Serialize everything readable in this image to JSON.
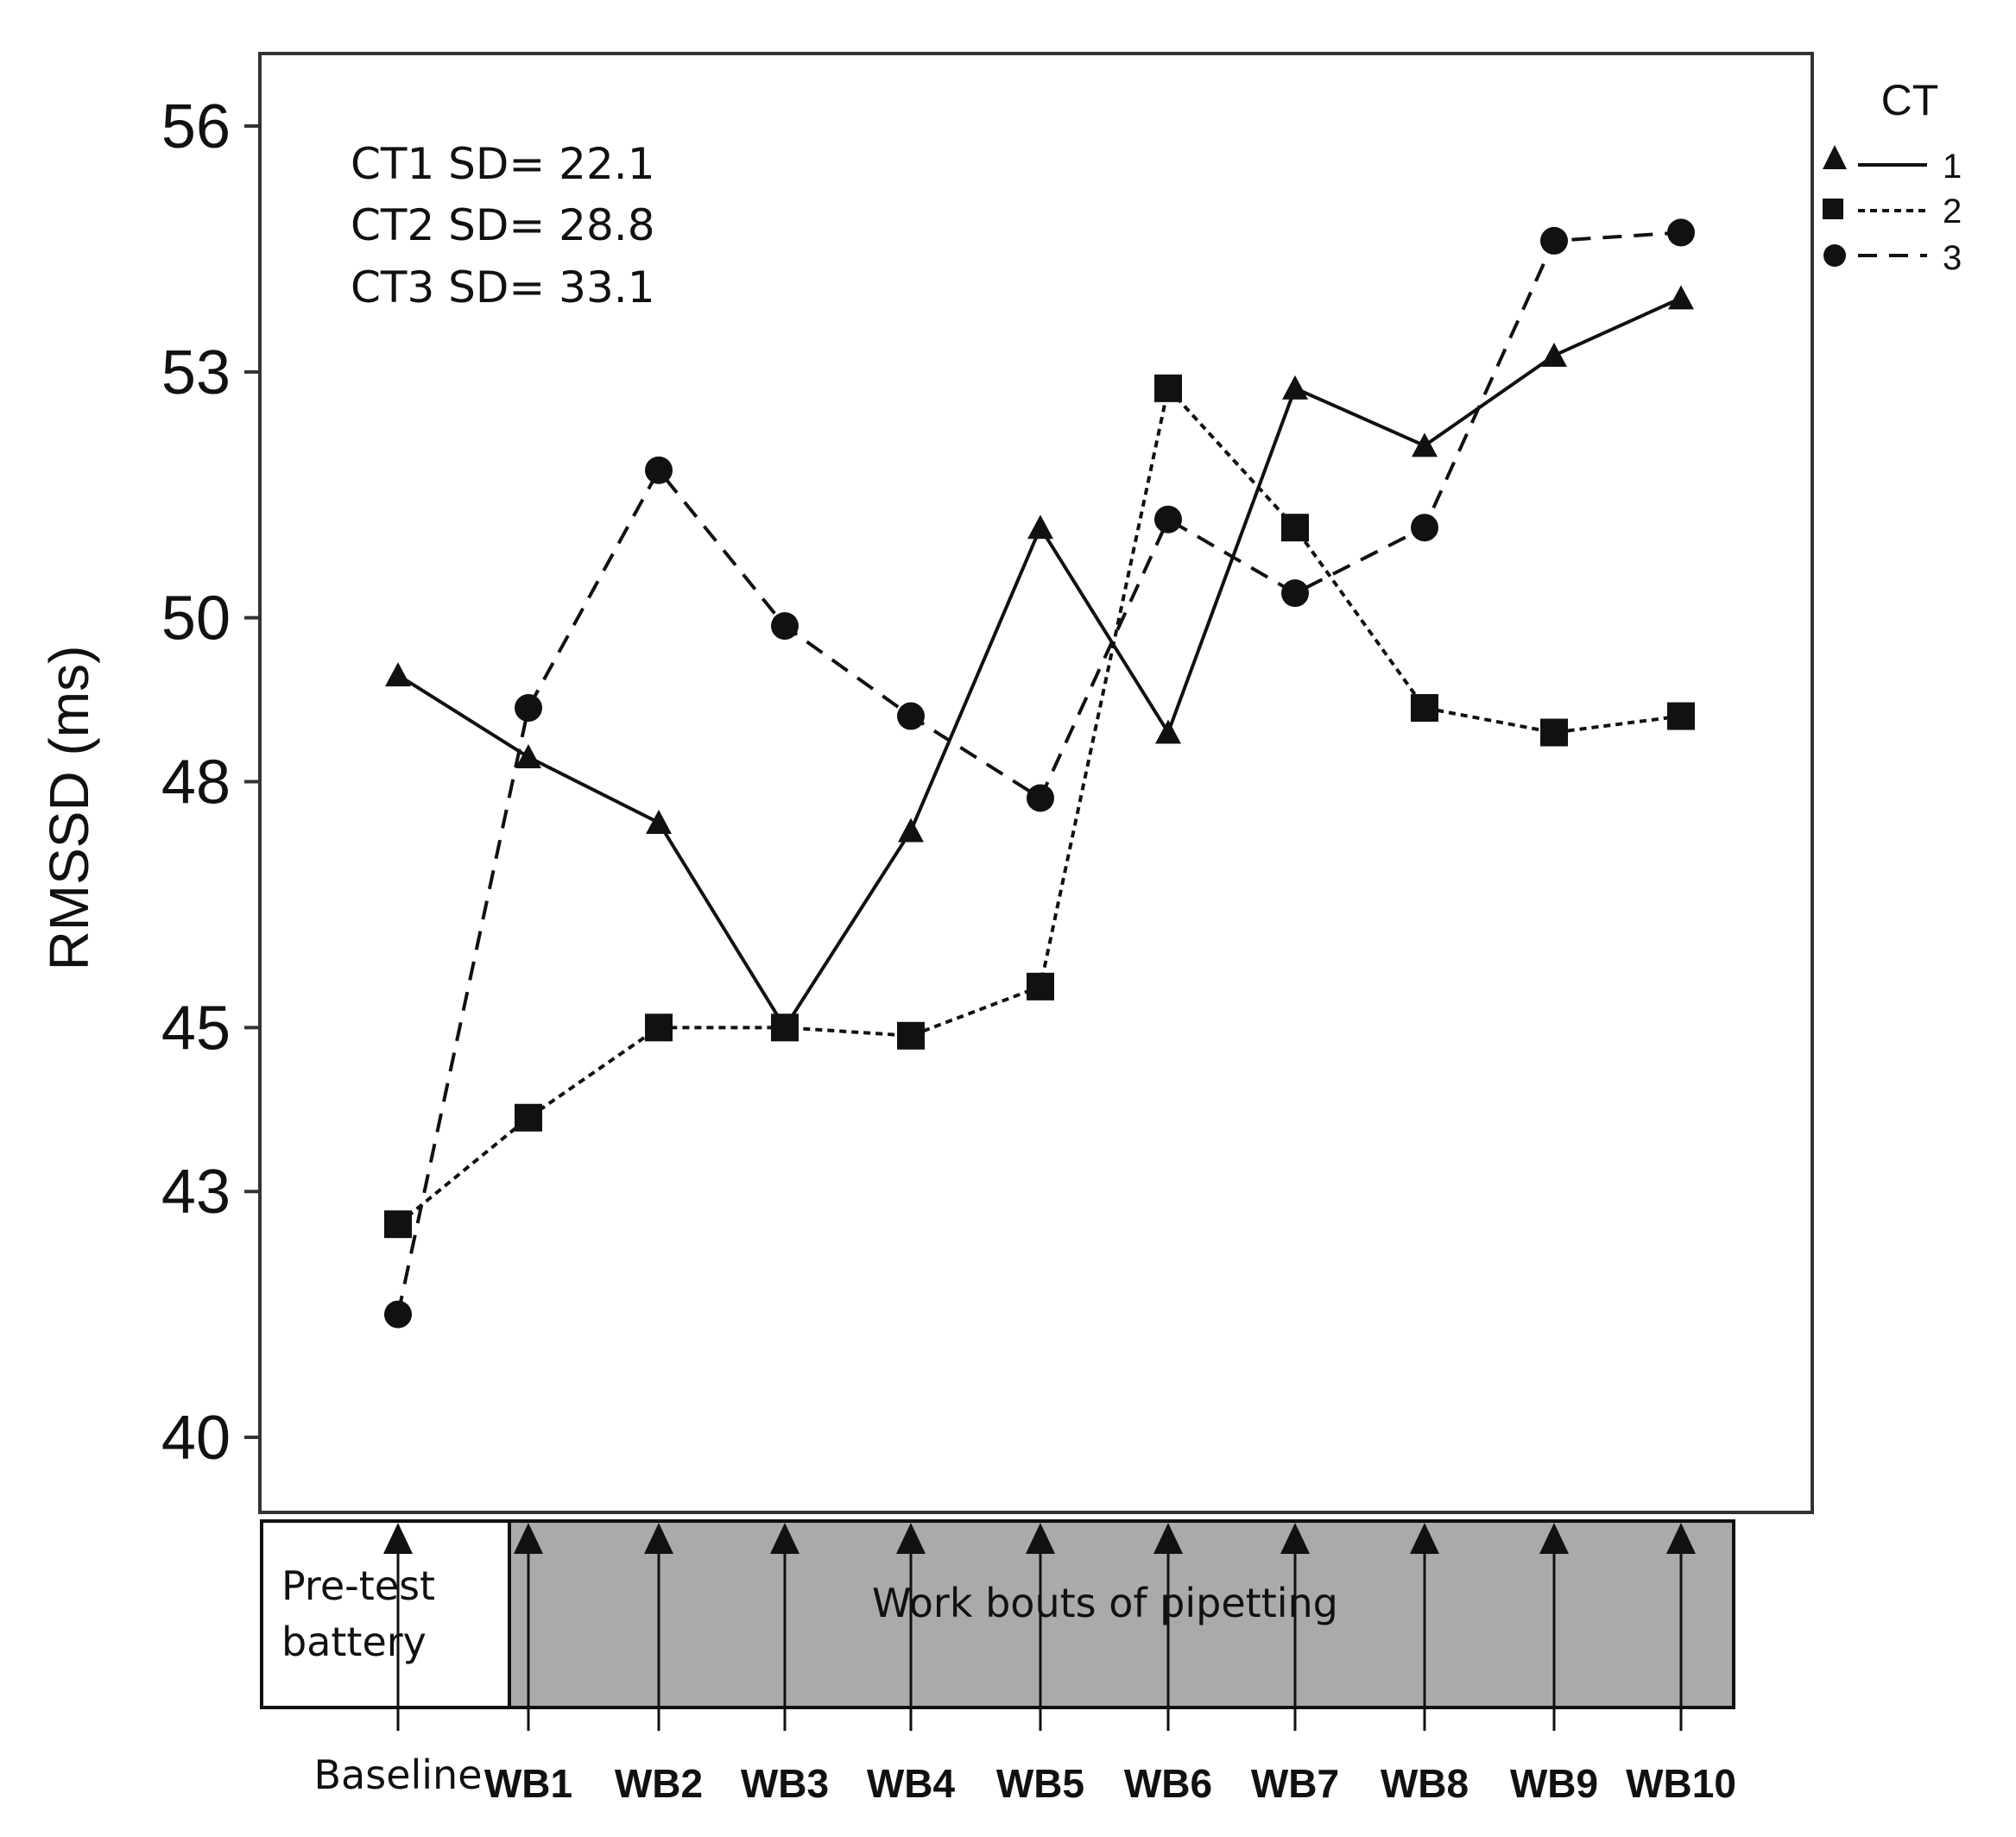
{
  "chart_data": {
    "type": "line",
    "ylabel": "RMSSD (ms)",
    "ylim": [
      40,
      56
    ],
    "yticks": [
      "56",
      "53",
      "50",
      "48",
      "45",
      "43",
      "40"
    ],
    "ytick_values": [
      56,
      53,
      50,
      48,
      45,
      43,
      40
    ],
    "categories": [
      "Baseline",
      "WB1",
      "WB2",
      "WB3",
      "WB4",
      "WB5",
      "WB6",
      "WB7",
      "WB8",
      "WB9",
      "WB10"
    ],
    "legend": {
      "title": "CT",
      "placement": "top-right, outside plot"
    },
    "series": [
      {
        "name": "1",
        "marker": "triangle",
        "line": "solid",
        "values": [
          49.3,
          48.3,
          47.5,
          45.0,
          47.4,
          51.1,
          48.6,
          52.8,
          52.1,
          53.2,
          53.9
        ]
      },
      {
        "name": "2",
        "marker": "square",
        "line": "dotted",
        "values": [
          42.6,
          43.9,
          45.0,
          45.0,
          44.9,
          45.5,
          52.8,
          51.1,
          48.9,
          48.6,
          48.8
        ]
      },
      {
        "name": "3",
        "marker": "circle",
        "line": "dashed",
        "values": [
          41.5,
          48.9,
          51.8,
          49.9,
          48.8,
          47.8,
          51.2,
          50.3,
          51.1,
          54.6,
          54.7
        ]
      }
    ],
    "annotations": [
      "CT1 SD= 22.1",
      "CT2 SD= 28.8",
      "CT3 SD= 33.1"
    ],
    "phases": {
      "pretest_line1": "Pre-test",
      "pretest_line2": "battery",
      "work": "Work bouts of pipetting"
    },
    "grid": false
  }
}
